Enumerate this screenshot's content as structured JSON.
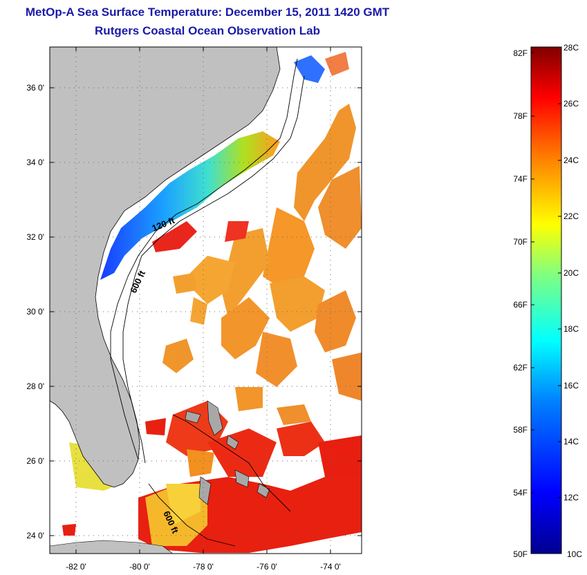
{
  "title": "MetOp-A Sea Surface Temperature:  December 15, 2011 1420 GMT",
  "subtitle": "Rutgers Coastal Ocean Observation Lab",
  "map": {
    "lon_ticks": [
      "-82 0'",
      "-80 0'",
      "-78 0'",
      "-76 0'",
      "-74 0'"
    ],
    "lat_ticks": [
      "36 0'",
      "34 0'",
      "32 0'",
      "30 0'",
      "28 0'",
      "26 0'",
      "24 0'"
    ],
    "depth_labels": [
      "120 ft",
      "600 ft",
      "600 ft"
    ],
    "land_color": "#c0c0c0",
    "no_data_color": "#ffffff"
  },
  "colorbar": {
    "fahrenheit_labels": [
      "82F",
      "78F",
      "74F",
      "70F",
      "66F",
      "62F",
      "58F",
      "54F",
      "50F"
    ],
    "celsius_labels": [
      "28C",
      "26C",
      "24C",
      "22C",
      "20C",
      "18C",
      "16C",
      "14C",
      "12C",
      "10C"
    ],
    "min_c": 10,
    "max_c": 28,
    "colors": [
      "#00008f",
      "#0000ff",
      "#0080ff",
      "#00ffff",
      "#80ff80",
      "#ffff00",
      "#ff8000",
      "#ff0000",
      "#800000"
    ]
  }
}
